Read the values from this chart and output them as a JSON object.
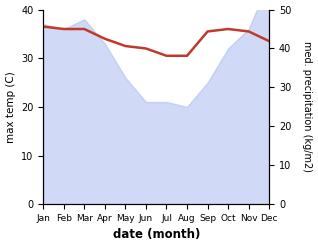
{
  "months": [
    "Jan",
    "Feb",
    "Mar",
    "Apr",
    "May",
    "Jun",
    "Jul",
    "Aug",
    "Sep",
    "Oct",
    "Nov",
    "Dec"
  ],
  "temp_line": [
    36.5,
    36.0,
    36.0,
    34.0,
    32.5,
    32.0,
    30.5,
    30.5,
    35.5,
    36.0,
    35.5,
    33.5
  ],
  "precip_fill_left_scale": [
    37,
    36,
    38,
    33,
    26,
    21,
    21,
    20,
    25,
    32,
    36,
    46
  ],
  "temp_color": "#c0392b",
  "fill_color": "#aabbee",
  "fill_alpha": 0.55,
  "ylabel_left": "max temp (C)",
  "ylabel_right": "med. precipitation (kg/m2)",
  "xlabel": "date (month)",
  "ylim_left": [
    0,
    40
  ],
  "ylim_right": [
    0,
    50
  ],
  "yticks_left": [
    0,
    10,
    20,
    30,
    40
  ],
  "yticks_right": [
    0,
    10,
    20,
    30,
    40,
    50
  ],
  "temp_linewidth": 1.8,
  "bg_color": "#ffffff"
}
